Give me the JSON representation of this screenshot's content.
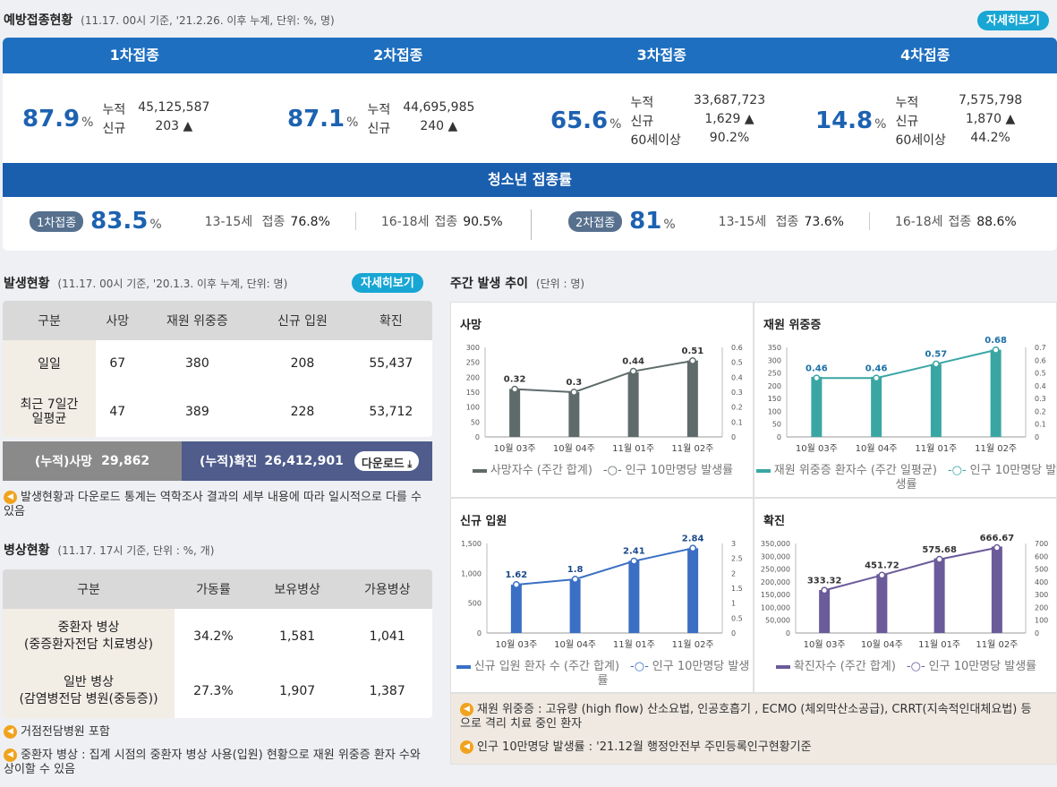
{
  "vaccination": {
    "title": "예방접종현황",
    "subtitle": "(11.17. 00시 기준, '21.2.26. 이후 누계, 단위: %, 명)",
    "detail_btn": "자세히보기",
    "doses": [
      {
        "label": "1차접종",
        "pct": "87.9",
        "unit": "%",
        "rows": [
          [
            "누적",
            "45,125,587"
          ],
          [
            "신규",
            "203 ▲"
          ]
        ]
      },
      {
        "label": "2차접종",
        "pct": "87.1",
        "unit": "%",
        "rows": [
          [
            "누적",
            "44,695,985"
          ],
          [
            "신규",
            "240 ▲"
          ]
        ]
      },
      {
        "label": "3차접종",
        "pct": "65.6",
        "unit": "%",
        "rows": [
          [
            "누적",
            "33,687,723"
          ],
          [
            "신규",
            "1,629 ▲"
          ],
          [
            "60세이상",
            "90.2%"
          ]
        ]
      },
      {
        "label": "4차접종",
        "pct": "14.8",
        "unit": "%",
        "rows": [
          [
            "누적",
            "7,575,798"
          ],
          [
            "신규",
            "1,870 ▲"
          ],
          [
            "60세이상",
            "44.2%"
          ]
        ]
      }
    ],
    "youth": {
      "title": "청소년 접종률",
      "d1": {
        "pill": "1차접종",
        "pct": "83.5",
        "unit": "%",
        "a_age": "13-15세",
        "a_lbl": "접종",
        "a_val": "76.8%",
        "b_age": "16-18세",
        "b_lbl": "접종",
        "b_val": "90.5%"
      },
      "d2": {
        "pill": "2차접종",
        "pct": "81",
        "unit": "%",
        "a_age": "13-15세",
        "a_lbl": "접종",
        "a_val": "73.6%",
        "b_age": "16-18세",
        "b_lbl": "접종",
        "b_val": "88.6%"
      }
    }
  },
  "occurrence": {
    "title": "발생현황",
    "subtitle": "(11.17. 00시 기준, '20.1.3. 이후 누계, 단위: 명)",
    "detail_btn": "자세히보기",
    "headers": [
      "구분",
      "사망",
      "재원 위중증",
      "신규 입원",
      "확진"
    ],
    "rows": [
      {
        "label": "일일",
        "vals": [
          "67",
          "380",
          "208",
          "55,437"
        ]
      },
      {
        "label": "최근 7일간\n일평균",
        "vals": [
          "47",
          "389",
          "228",
          "53,712"
        ]
      }
    ],
    "cum_death_label": "(누적)사망",
    "cum_death": "29,862",
    "cum_conf_label": "(누적)확진",
    "cum_conf": "26,412,901",
    "download": "다운로드",
    "note": "발생현황과 다운로드 통계는 역학조사 결과의 세부 내용에 따라 일시적으로 다를 수 있음"
  },
  "beds": {
    "title": "병상현황",
    "subtitle": "(11.17. 17시 기준, 단위 : %, 개)",
    "headers": [
      "구분",
      "가동률",
      "보유병상",
      "가용병상"
    ],
    "rows": [
      {
        "label1": "중환자 병상",
        "label2": "(중증환자전담 치료병상)",
        "vals": [
          "34.2%",
          "1,581",
          "1,041"
        ]
      },
      {
        "label1": "일반 병상",
        "label2": "(감염병전담 병원(중등증))",
        "vals": [
          "27.3%",
          "1,907",
          "1,387"
        ]
      }
    ],
    "note1": "거점전담병원 포함",
    "note2": "중환자 병상 : 집계 시점의 중환자 병상 사용(입원) 현황으로 재원 위중증 환자 수와 상이할 수 있음"
  },
  "weekly": {
    "title": "주간 발생 추이",
    "subtitle": "(단위 : 명)",
    "notes": [
      "재원 위중증 : 고유량 (high flow) 산소요법, 인공호흡기 , ECMO (체외막산소공급), CRRT(지속적인대체요법) 등으로 격리 치료 중인 환자",
      "인구 10만명당 발생률 : '21.12월 행정안전부 주민등록인구현황기준"
    ]
  },
  "chart_data": [
    {
      "type": "bar",
      "title": "사망",
      "categories": [
        "10월 03주",
        "10월 04주",
        "11월 01주",
        "11월 02주"
      ],
      "bar_color": "#5f6b6b",
      "line_color": "#5f6b6b",
      "bar_values": [
        161,
        150,
        217,
        256
      ],
      "rate_values": [
        0.32,
        0.3,
        0.44,
        0.51
      ],
      "rate_labels": [
        "0.32",
        "0.3",
        "0.44",
        "0.51"
      ],
      "left_ticks": [
        "300",
        "250",
        "200",
        "150",
        "100",
        "50",
        "0"
      ],
      "left_max": 300,
      "right_ticks": [
        "0.6",
        "0.5",
        "0.4",
        "0.3",
        "0.2",
        "0.1",
        "0"
      ],
      "right_max": 0.6,
      "legend_bar": "사망자수 (주간 합계)",
      "legend_line": "인구 10만명당 발생률",
      "label_color": "#333"
    },
    {
      "type": "bar",
      "title": "재원 위중증",
      "categories": [
        "10월 03주",
        "10월 04주",
        "11월 01주",
        "11월 02주"
      ],
      "bar_color": "#3aa6a4",
      "line_color": "#3aa6a4",
      "bar_values": [
        235,
        235,
        285,
        341
      ],
      "rate_values": [
        0.46,
        0.46,
        0.57,
        0.68
      ],
      "rate_labels": [
        "0.46",
        "0.46",
        "0.57",
        "0.68"
      ],
      "left_ticks": [
        "350",
        "300",
        "250",
        "200",
        "150",
        "100",
        "50",
        "0"
      ],
      "left_max": 350,
      "right_ticks": [
        "0.7",
        "0.6",
        "0.5",
        "0.4",
        "0.3",
        "0.2",
        "0.1",
        "0"
      ],
      "right_max": 0.7,
      "legend_bar": "재원 위중증 환자수 (주간 일평균)",
      "legend_line": "인구 10만명당 발생률",
      "label_color": "#1a6fa8"
    },
    {
      "type": "bar",
      "title": "신규 입원",
      "categories": [
        "10월 03주",
        "10월 04주",
        "11월 01주",
        "11월 02주"
      ],
      "bar_color": "#3a6fc4",
      "line_color": "#3a6fc4",
      "bar_values": [
        810,
        900,
        1210,
        1420
      ],
      "rate_values": [
        1.62,
        1.8,
        2.41,
        2.84
      ],
      "rate_labels": [
        "1.62",
        "1.8",
        "2.41",
        "2.84"
      ],
      "left_ticks": [
        "1,500",
        "1,000",
        "500",
        "0"
      ],
      "left_max": 1500,
      "right_ticks": [
        "3",
        "2.5",
        "2",
        "1.5",
        "1",
        "0.5",
        "0"
      ],
      "right_max": 3,
      "legend_bar": "신규 입원 환자 수 (주간 합계)",
      "legend_line": "인구 10만명당 발생률",
      "label_color": "#1a4a8a"
    },
    {
      "type": "bar",
      "title": "확진",
      "categories": [
        "10월 03주",
        "10월 04주",
        "11월 01주",
        "11월 02주"
      ],
      "bar_color": "#6b5b9a",
      "line_color": "#6b5b9a",
      "bar_values": [
        168000,
        230000,
        292000,
        338000
      ],
      "rate_values": [
        333.32,
        451.72,
        575.68,
        666.67
      ],
      "rate_labels": [
        "333.32",
        "451.72",
        "575.68",
        "666.67"
      ],
      "left_ticks": [
        "350,000",
        "300,000",
        "250,000",
        "200,000",
        "150,000",
        "100,000",
        "50,000",
        "0"
      ],
      "left_max": 350000,
      "right_ticks": [
        "700",
        "600",
        "500",
        "400",
        "300",
        "200",
        "100",
        "0"
      ],
      "right_max": 700,
      "legend_bar": "확진자수 (주간 합계)",
      "legend_line": "인구 10만명당 발생률",
      "label_color": "#333"
    }
  ]
}
